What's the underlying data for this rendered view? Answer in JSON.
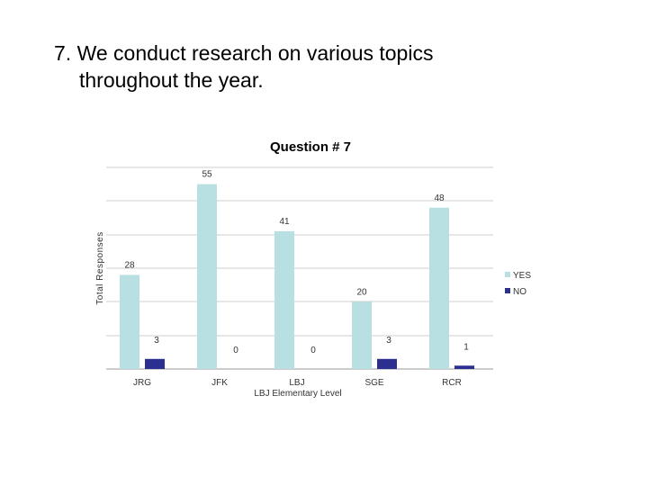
{
  "slide": {
    "title_line1": "7.  We conduct research on various topics",
    "title_line2": "throughout the year."
  },
  "chart_data": {
    "type": "bar",
    "title": "Question # 7",
    "xlabel": "LBJ Elementary Level",
    "ylabel": "Total Responses",
    "categories": [
      "JRG",
      "JFK",
      "LBJ",
      "SGE",
      "RCR"
    ],
    "series": [
      {
        "name": "YES",
        "values": [
          28,
          55,
          41,
          20,
          48
        ],
        "color": "#b8dfe2"
      },
      {
        "name": "NO",
        "values": [
          3,
          0,
          0,
          3,
          1
        ],
        "color": "#2b2f8f"
      }
    ],
    "ylim": [
      0,
      60
    ],
    "grid": true,
    "legend": "right"
  }
}
